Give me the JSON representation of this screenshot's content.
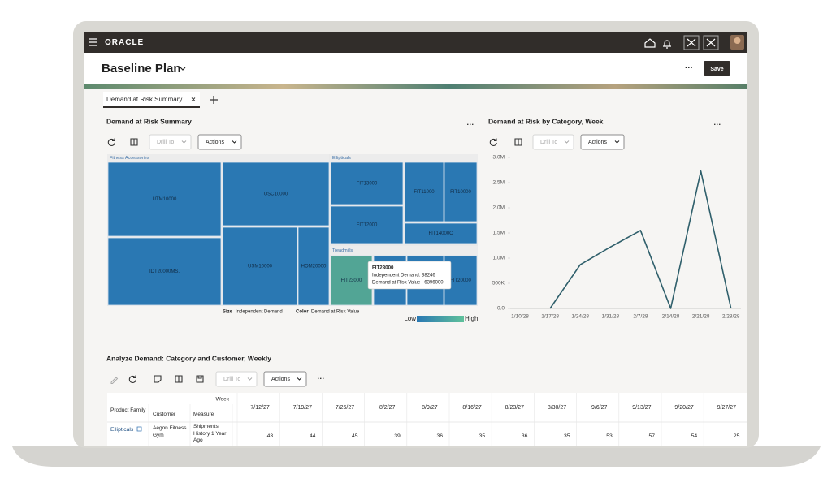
{
  "topbar": {
    "brand": "ORACLE"
  },
  "header": {
    "title": "Baseline Plan",
    "save": "Save"
  },
  "tabs": [
    {
      "label": "Demand at Risk Summary"
    }
  ],
  "summary": {
    "title": "Demand at Risk Summary",
    "toolbar": {
      "drill": "Drill To",
      "actions": "Actions"
    },
    "treemap": {
      "groups": [
        {
          "label": "Fitness Accessories",
          "cells": [
            "UTM10000",
            "IDT20000MS.",
            "USC10000",
            "USM10000",
            "HOM20000"
          ]
        },
        {
          "label": "Ellipticals",
          "cells": [
            "FIT13000",
            "FIT11000",
            "FIT10000",
            "FIT12000",
            "FIT14000C"
          ]
        },
        {
          "label": "Treadmills",
          "cells": [
            "FIT23000",
            "FIT20000"
          ]
        }
      ]
    },
    "tooltip": {
      "title": "FIT23000",
      "lines": [
        "Independent Demand: 38246",
        "Demand at Risk Value : 6396000"
      ]
    },
    "legend": {
      "size_label": "Size",
      "size_value": "Independent Demand",
      "color_label": "Color",
      "color_value": "Demand at Risk Value",
      "low": "Low",
      "high": "High"
    }
  },
  "category_week": {
    "title": "Demand at Risk by Category, Week",
    "toolbar": {
      "drill": "Drill To",
      "actions": "Actions"
    }
  },
  "chart_data": {
    "type": "line",
    "x": [
      "1/10/28",
      "1/17/28",
      "1/24/28",
      "1/31/28",
      "2/7/28",
      "2/14/28",
      "2/21/28",
      "2/28/28"
    ],
    "values": [
      null,
      0,
      870000,
      1220000,
      1550000,
      0,
      2730000,
      0
    ],
    "color": "#2f5f6b",
    "ylim": [
      0,
      3000000
    ],
    "yticks": [
      {
        "value": 0,
        "label": "0.0"
      },
      {
        "value": 500000,
        "label": "500K"
      },
      {
        "value": 1000000,
        "label": "1.0M"
      },
      {
        "value": 1500000,
        "label": "1.5M"
      },
      {
        "value": 2000000,
        "label": "2.0M"
      },
      {
        "value": 2500000,
        "label": "2.5M"
      },
      {
        "value": 3000000,
        "label": "3.0M"
      }
    ]
  },
  "analyze": {
    "title": "Analyze Demand: Category and Customer, Weekly",
    "toolbar": {
      "drill": "Drill To",
      "actions": "Actions"
    },
    "table": {
      "week_label": "Week",
      "headers": [
        "Product Family",
        "Customer",
        "Measure"
      ],
      "columns": [
        "7/12/27",
        "7/19/27",
        "7/26/27",
        "8/2/27",
        "8/9/27",
        "8/16/27",
        "8/23/27",
        "8/30/27",
        "9/6/27",
        "9/13/27",
        "9/20/27",
        "9/27/27"
      ],
      "rows": [
        [
          "Ellipticals",
          "Aegon Fitness Gym",
          "Shipments History 1 Year Ago",
          43,
          44,
          45,
          39,
          36,
          35,
          36,
          35,
          53,
          57,
          54,
          25
        ]
      ]
    }
  }
}
